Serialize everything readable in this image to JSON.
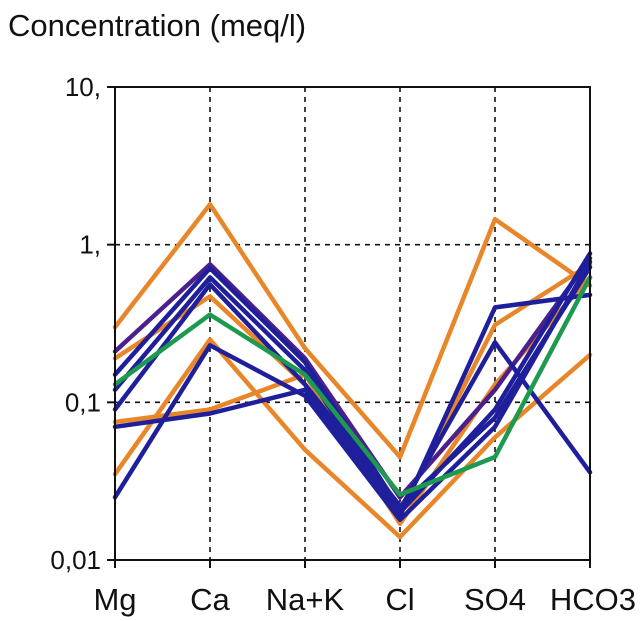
{
  "chart_data": {
    "type": "line",
    "title": "Concentration (meq/l)",
    "yscale": "log",
    "ylim": [
      0.01,
      10
    ],
    "yticks": [
      {
        "value": 10,
        "label": "10,"
      },
      {
        "value": 1,
        "label": "1,"
      },
      {
        "value": 0.1,
        "label": "0,1"
      },
      {
        "value": 0.01,
        "label": "0,01"
      }
    ],
    "categories": [
      "Mg",
      "Ca",
      "Na+K",
      "Cl",
      "SO4",
      "HCO3"
    ],
    "grid": "dashed",
    "colors": {
      "orange": "#e8862a",
      "blue": "#1f1f9c",
      "purple": "#4b1f8c",
      "green": "#1e9a50"
    },
    "series": [
      {
        "color": "orange",
        "values": [
          0.3,
          1.8,
          0.22,
          0.045,
          1.45,
          0.55
        ]
      },
      {
        "color": "orange",
        "values": [
          0.19,
          0.47,
          0.13,
          0.02,
          0.31,
          0.75
        ]
      },
      {
        "color": "orange",
        "values": [
          0.035,
          0.25,
          0.05,
          0.014,
          0.06,
          0.2
        ]
      },
      {
        "color": "orange",
        "values": [
          0.075,
          0.09,
          0.15,
          0.017,
          0.13,
          0.62
        ]
      },
      {
        "color": "purple",
        "values": [
          0.21,
          0.75,
          0.19,
          0.025,
          0.12,
          0.82
        ]
      },
      {
        "color": "blue",
        "values": [
          0.15,
          0.71,
          0.18,
          0.021,
          0.24,
          0.036
        ]
      },
      {
        "color": "blue",
        "values": [
          0.12,
          0.62,
          0.16,
          0.019,
          0.4,
          0.48
        ]
      },
      {
        "color": "blue",
        "values": [
          0.09,
          0.56,
          0.13,
          0.022,
          0.08,
          0.72
        ]
      },
      {
        "color": "blue",
        "values": [
          0.025,
          0.23,
          0.11,
          0.018,
          0.07,
          0.78
        ]
      },
      {
        "color": "blue",
        "values": [
          0.07,
          0.085,
          0.12,
          0.02,
          0.09,
          0.88
        ]
      },
      {
        "color": "green",
        "values": [
          0.13,
          0.36,
          0.15,
          0.026,
          0.045,
          0.62
        ]
      }
    ]
  }
}
